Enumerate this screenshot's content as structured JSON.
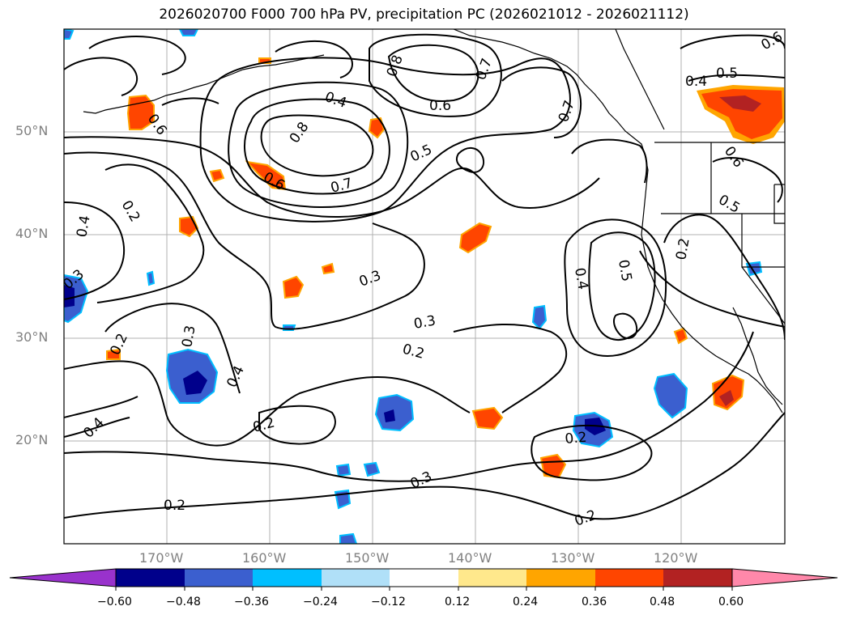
{
  "title": "2026020700 F000 700 hPa PV, precipitation PC (2026021012 - 2026021112)",
  "map": {
    "lat_labels": [
      "50°N",
      "40°N",
      "30°N",
      "20°N"
    ],
    "lon_labels": [
      "170°W",
      "160°W",
      "150°W",
      "140°W",
      "130°W",
      "120°W"
    ],
    "contour_labels": {
      "a": "0.8",
      "b": "0.8",
      "c": "0.7",
      "d": "0.7",
      "e": "0.7",
      "f": "0.6",
      "g": "0.6",
      "h": "0.6",
      "i": "0.5",
      "j": "0.5",
      "k": "0.5",
      "l": "0.4",
      "m": "0.4",
      "n": "0.4",
      "o": "0.4",
      "p": "0.3",
      "q": "0.3",
      "r": "0.3",
      "s": "0.3",
      "t": "0.2",
      "u": "0.2",
      "v": "0.2",
      "w": "0.2",
      "x": "0.2",
      "y": "0.2",
      "z": "0.6",
      "aa": "0.5",
      "ab": "0.4",
      "ac": "0.2",
      "ad": "0.3",
      "ae": "0.2",
      "af": "0.4",
      "ag": "0.6"
    },
    "colors": {
      "neg_strong": "#00008b",
      "neg_mid": "#3b5fcf",
      "neg_light": "#00bfff",
      "pos_light": "#ffa500",
      "pos_mid": "#ff4500",
      "pos_strong": "#b22222"
    }
  },
  "colorbar": {
    "ticks": [
      "−0.60",
      "−0.48",
      "−0.36",
      "−0.24",
      "−0.12",
      "0.12",
      "0.24",
      "0.36",
      "0.48",
      "0.60"
    ],
    "colors": [
      "#9932cc",
      "#00008b",
      "#3b5fcf",
      "#00bfff",
      "#b0e0f8",
      "#ffffff",
      "#ffe88c",
      "#ffa500",
      "#ff4500",
      "#b22222",
      "#ff88aa"
    ]
  }
}
